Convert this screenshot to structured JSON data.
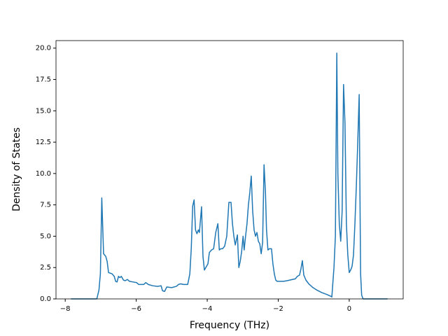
{
  "chart_data": {
    "type": "line",
    "xlabel": "Frequency (THz)",
    "ylabel": "Density of States",
    "x": [
      -7.84,
      -7.11,
      -7.05,
      -7.01,
      -6.97,
      -6.92,
      -6.86,
      -6.82,
      -6.78,
      -6.68,
      -6.62,
      -6.58,
      -6.54,
      -6.5,
      -6.46,
      -6.42,
      -6.36,
      -6.31,
      -6.25,
      -6.19,
      -6.09,
      -5.99,
      -5.93,
      -5.79,
      -5.73,
      -5.66,
      -5.54,
      -5.4,
      -5.3,
      -5.26,
      -5.2,
      -5.14,
      -5.0,
      -4.87,
      -4.81,
      -4.75,
      -4.67,
      -4.55,
      -4.49,
      -4.45,
      -4.41,
      -4.37,
      -4.33,
      -4.29,
      -4.25,
      -4.22,
      -4.16,
      -4.12,
      -4.08,
      -4.04,
      -3.98,
      -3.94,
      -3.88,
      -3.82,
      -3.76,
      -3.7,
      -3.66,
      -3.62,
      -3.57,
      -3.51,
      -3.45,
      -3.39,
      -3.33,
      -3.29,
      -3.25,
      -3.21,
      -3.15,
      -3.11,
      -3.07,
      -3.03,
      -2.99,
      -2.96,
      -2.92,
      -2.88,
      -2.84,
      -2.8,
      -2.76,
      -2.72,
      -2.68,
      -2.64,
      -2.6,
      -2.56,
      -2.52,
      -2.48,
      -2.44,
      -2.4,
      -2.36,
      -2.33,
      -2.29,
      -2.25,
      -2.19,
      -2.15,
      -2.11,
      -2.07,
      -2.03,
      -1.85,
      -1.75,
      -1.6,
      -1.52,
      -1.46,
      -1.4,
      -1.36,
      -1.32,
      -1.28,
      -1.22,
      -1.14,
      -1.02,
      -0.91,
      -0.77,
      -0.63,
      -0.51,
      -0.49,
      -0.43,
      -0.39,
      -0.35,
      -0.32,
      -0.28,
      -0.24,
      -0.2,
      -0.16,
      -0.12,
      -0.08,
      -0.04,
      0.0,
      0.04,
      0.08,
      0.12,
      0.16,
      0.2,
      0.24,
      0.28,
      0.32,
      0.35,
      0.39,
      1.08
    ],
    "series": [
      {
        "color": "#1f77b4",
        "values": [
          0,
          0,
          0.7,
          2,
          8.05,
          3.6,
          3.4,
          3.0,
          2.1,
          2.0,
          1.8,
          1.4,
          1.35,
          1.8,
          1.7,
          1.8,
          1.5,
          1.45,
          1.55,
          1.4,
          1.35,
          1.3,
          1.15,
          1.15,
          1.3,
          1.15,
          1.05,
          1.0,
          1.05,
          0.65,
          0.6,
          0.95,
          0.9,
          1.0,
          1.15,
          1.2,
          1.15,
          1.15,
          2.0,
          4.0,
          7.4,
          7.9,
          5.5,
          5.2,
          5.5,
          5.3,
          7.35,
          3.4,
          2.3,
          2.5,
          2.8,
          3.7,
          3.9,
          4.0,
          5.3,
          6.0,
          3.9,
          4.0,
          4.0,
          4.2,
          5.0,
          7.7,
          7.7,
          6.0,
          5.0,
          4.3,
          5.1,
          2.5,
          3.0,
          3.8,
          5.0,
          3.9,
          5.0,
          6.0,
          7.5,
          8.5,
          9.8,
          7.0,
          5.5,
          5.0,
          5.3,
          4.6,
          4.4,
          3.6,
          4.5,
          10.7,
          8.5,
          5.5,
          3.9,
          4.0,
          4.0,
          2.8,
          2.0,
          1.5,
          1.4,
          1.4,
          1.45,
          1.55,
          1.6,
          1.8,
          1.9,
          2.4,
          3.05,
          1.9,
          1.5,
          1.2,
          0.9,
          0.7,
          0.5,
          0.35,
          0.2,
          0.15,
          2.5,
          5.0,
          19.6,
          10.0,
          6.0,
          4.6,
          7.0,
          17.1,
          14.0,
          6.0,
          3.5,
          2.1,
          2.3,
          2.6,
          3.5,
          6.0,
          9.0,
          12.5,
          16.3,
          2.0,
          0.3,
          0,
          0
        ]
      }
    ],
    "xlim": [
      -8.26,
      1.52
    ],
    "ylim": [
      0,
      20.6
    ],
    "xticks": [
      {
        "value": -8,
        "label": "−8"
      },
      {
        "value": -6,
        "label": "−6"
      },
      {
        "value": -4,
        "label": "−4"
      },
      {
        "value": -2,
        "label": "−2"
      },
      0
    ],
    "yticks": [
      {
        "value": 0,
        "label": "0.0"
      },
      {
        "value": 2.5,
        "label": "2.5"
      },
      {
        "value": 5,
        "label": "5.0"
      },
      {
        "value": 7.5,
        "label": "7.5"
      },
      {
        "value": 10,
        "label": "10.0"
      },
      {
        "value": 12.5,
        "label": "12.5"
      },
      {
        "value": 15,
        "label": "15.0"
      },
      {
        "value": 17.5,
        "label": "17.5"
      },
      {
        "value": 20,
        "label": "20.0"
      }
    ],
    "grid": false
  }
}
